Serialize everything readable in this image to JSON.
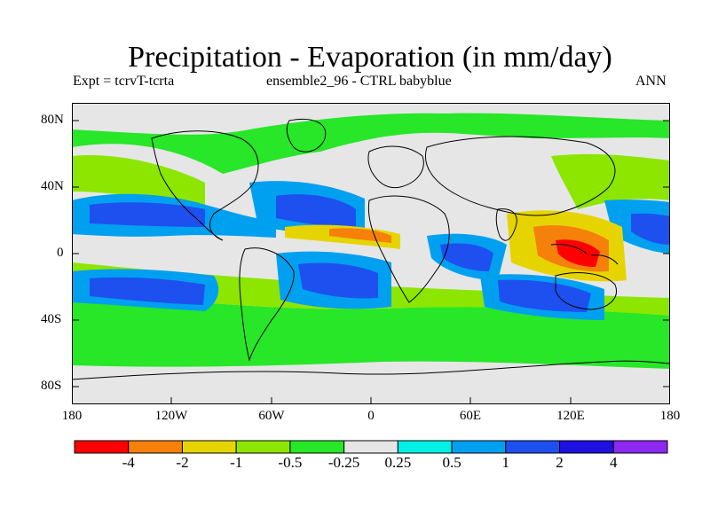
{
  "title": "Precipitation - Evaporation (in mm/day)",
  "subtitle_left": "Expt = tcrvT-tcrta",
  "subtitle_center": "ensemble2_96 - CTRL babyblue",
  "subtitle_right": "ANN",
  "map": {
    "lat_ticks": [
      "80N",
      "40N",
      "0",
      "40S",
      "80S"
    ],
    "lon_ticks": [
      "180",
      "120W",
      "60W",
      "0",
      "60E",
      "120E",
      "180"
    ]
  },
  "colorbar": {
    "labels": [
      "-4",
      "-2",
      "-1",
      "-0.5",
      "-0.25",
      "0.25",
      "0.5",
      "1",
      "2",
      "4"
    ],
    "colors": [
      "#ff0000",
      "#f5800a",
      "#e6d400",
      "#8ce600",
      "#28e628",
      "#e6e6e6",
      "#00f0e6",
      "#00a0f0",
      "#1e50f0",
      "#1e10e0",
      "#8c28f0"
    ]
  }
}
